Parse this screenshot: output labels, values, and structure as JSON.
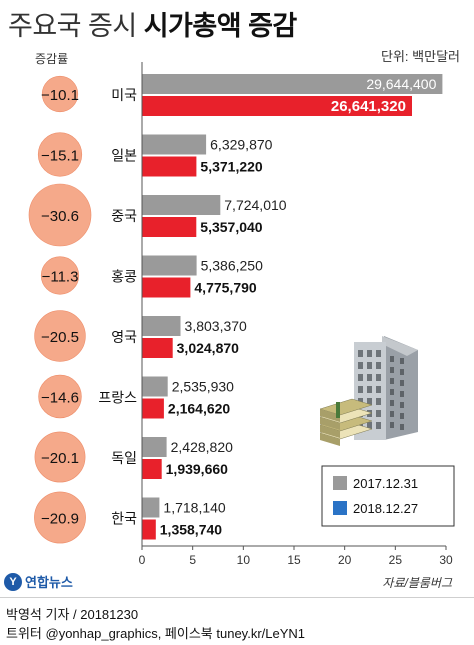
{
  "header": {
    "title_light": "주요국 증시",
    "title_bold": "시가총액 증감",
    "unit": "단위: 백만달러",
    "change_column_label": "증감률",
    "source": "자료/블룸버그",
    "logo_text": "연합뉴스",
    "logo_icon": "yonhap-logo-icon"
  },
  "footer": {
    "line1": "박영석 기자 / 20181230",
    "line2": "트위터 @yonhap_graphics, 페이스북 tuney.kr/LeYN1"
  },
  "colors": {
    "series_2017": "#9a9a9a",
    "series_2018": "#e8212b",
    "legend_2018_swatch": "#2a73c6",
    "circle_fill": "#f5a98a",
    "circle_edge": "#ee8d69"
  },
  "chart_data": {
    "type": "bar",
    "orientation": "horizontal",
    "categories": [
      "미국",
      "일본",
      "중국",
      "홍콩",
      "영국",
      "프랑스",
      "독일",
      "한국"
    ],
    "series": [
      {
        "name": "2017.12.31",
        "values": [
          29644400,
          6329870,
          7724010,
          5386250,
          3803370,
          2535930,
          2428820,
          1718140
        ]
      },
      {
        "name": "2018.12.27",
        "values": [
          26641320,
          5371220,
          5357040,
          4775790,
          3024870,
          2164620,
          1939660,
          1358740
        ]
      }
    ],
    "value_labels": [
      [
        "29,644,400",
        "6,329,870",
        "7,724,010",
        "5,386,250",
        "3,803,370",
        "2,535,930",
        "2,428,820",
        "1,718,140"
      ],
      [
        "26,641,320",
        "5,371,220",
        "5,357,040",
        "4,775,790",
        "3,024,870",
        "2,164,620",
        "1,939,660",
        "1,358,740"
      ]
    ],
    "change_pct": [
      -10.1,
      -15.1,
      -30.6,
      -11.3,
      -20.5,
      -14.6,
      -20.1,
      -20.9
    ],
    "change_labels": [
      "−10.1",
      "−15.1",
      "−30.6",
      "−11.3",
      "−20.5",
      "−14.6",
      "−20.1",
      "−20.9"
    ],
    "x_ticks": [
      "0",
      "5",
      "10",
      "15",
      "20",
      "25",
      "30"
    ],
    "x_tick_values": [
      0,
      5,
      10,
      15,
      20,
      25,
      30
    ],
    "xlim": [
      0,
      30000000
    ],
    "legend": [
      "2017.12.31",
      "2018.12.27"
    ],
    "legend_position": "bottom-right",
    "grid": false
  }
}
